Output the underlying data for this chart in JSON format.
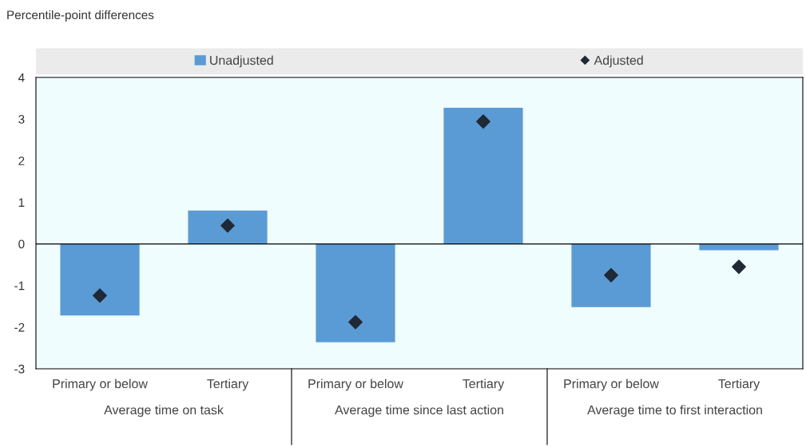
{
  "chart_data": {
    "type": "bar",
    "ylabel": "Percentile-point differences",
    "categories": [
      "Primary or below",
      "Tertiary",
      "Primary or below",
      "Tertiary",
      "Primary or below",
      "Tertiary"
    ],
    "series": [
      {
        "name": "Unadjusted",
        "type": "bar",
        "color": "#5b9bd5",
        "values": [
          -1.72,
          0.8,
          -2.36,
          3.27,
          -1.52,
          -0.15
        ]
      },
      {
        "name": "Adjusted",
        "type": "scatter",
        "color": "#1f2a36",
        "marker": "diamond",
        "values": [
          -1.24,
          0.44,
          -1.88,
          2.94,
          -0.75,
          -0.55
        ]
      }
    ],
    "annotations": [
      "Average time on task",
      "Average time since last action",
      "Average time to first interaction"
    ],
    "ylim": [
      -3,
      4
    ],
    "yticks": [
      -3,
      -2,
      -1,
      0,
      1,
      2,
      3,
      4
    ],
    "ref_lines": [
      {
        "axis": "y",
        "value": 0,
        "color": "#000000"
      }
    ],
    "grid": false,
    "legend": "top"
  }
}
